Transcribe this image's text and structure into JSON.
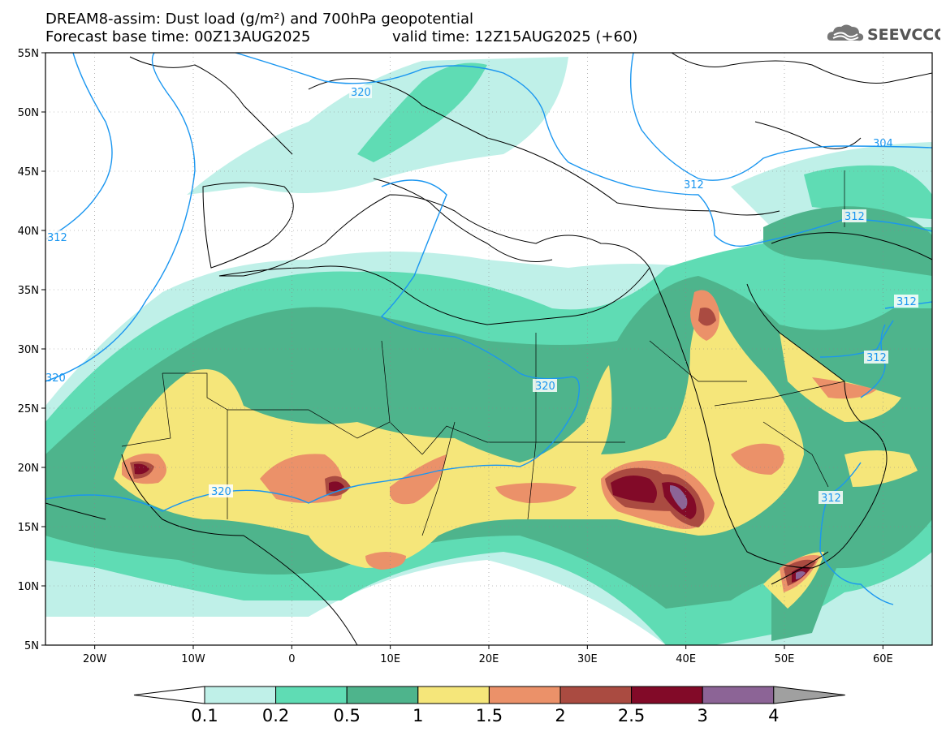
{
  "header": {
    "title_line1": "DREAM8-assim: Dust load (g/m²) and 700hPa geopotential",
    "title_line2": "Forecast base time: 00Z13AUG2025",
    "valid_time": "valid time: 12Z15AUG2025 (+60)",
    "logo_text": "SEEVCCC"
  },
  "axes": {
    "lat_labels": [
      "55N",
      "50N",
      "45N",
      "40N",
      "35N",
      "30N",
      "25N",
      "20N",
      "15N",
      "10N",
      "5N"
    ],
    "lon_labels": [
      "20W",
      "10W",
      "0",
      "10E",
      "20E",
      "30E",
      "40E",
      "50E",
      "60E"
    ],
    "lon_range": [
      -25,
      65
    ],
    "lat_range": [
      5,
      55
    ]
  },
  "contours": {
    "labels": [
      "320",
      "312",
      "304",
      "320",
      "320",
      "312",
      "312",
      "312",
      "312",
      "312",
      "320"
    ]
  },
  "colorbar": {
    "colors": [
      "#bff0e8",
      "#5fdcb4",
      "#4eb48c",
      "#f5e67a",
      "#eb9169",
      "#aa4b41",
      "#820a28",
      "#8c6496",
      "#a0a0a0"
    ],
    "tick_labels": [
      "0.1",
      "0.2",
      "0.5",
      "1",
      "1.5",
      "2",
      "2.5",
      "3",
      "4"
    ]
  }
}
